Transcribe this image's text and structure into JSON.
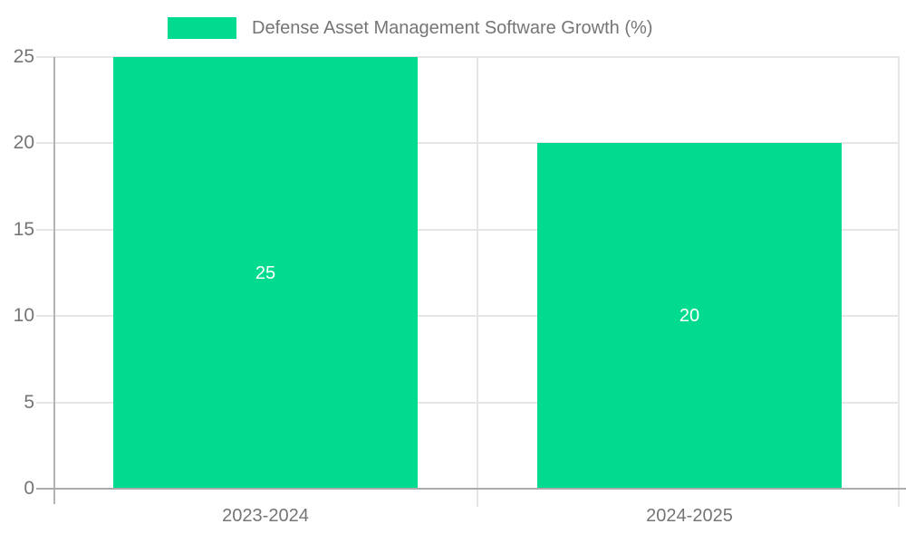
{
  "chart_data": {
    "type": "bar",
    "title": "Defense Asset Management Software Growth (%)",
    "categories": [
      "2023-2024",
      "2024-2025"
    ],
    "values": [
      25,
      20
    ],
    "series": [
      {
        "name": "Defense Asset Management Software Growth (%)",
        "values": [
          25,
          20
        ]
      }
    ],
    "xlabel": "",
    "ylabel": "",
    "ylim": [
      0,
      25
    ],
    "yticks": [
      0,
      5,
      10,
      15,
      20,
      25
    ],
    "grid": true,
    "legend_position": "top-left",
    "bar_color": "#00DB8F",
    "bar_label_color": "#FFFFFF"
  },
  "legend": {
    "label": "Defense Asset Management Software Growth (%)"
  },
  "y_axis": {
    "tick_labels": [
      "25",
      "20",
      "15",
      "10",
      "5",
      "0"
    ]
  },
  "x_axis": {
    "labels": [
      "2023-2024",
      "2024-2025"
    ]
  },
  "bar_labels": [
    "25",
    "20"
  ],
  "colors": {
    "bar": "#00DB8F",
    "axis_text": "#757575",
    "gridline": "#E6E6E6",
    "axis_line": "#B3B3B3",
    "baseline": "#ABABAB",
    "background": "#FFFFFF"
  }
}
